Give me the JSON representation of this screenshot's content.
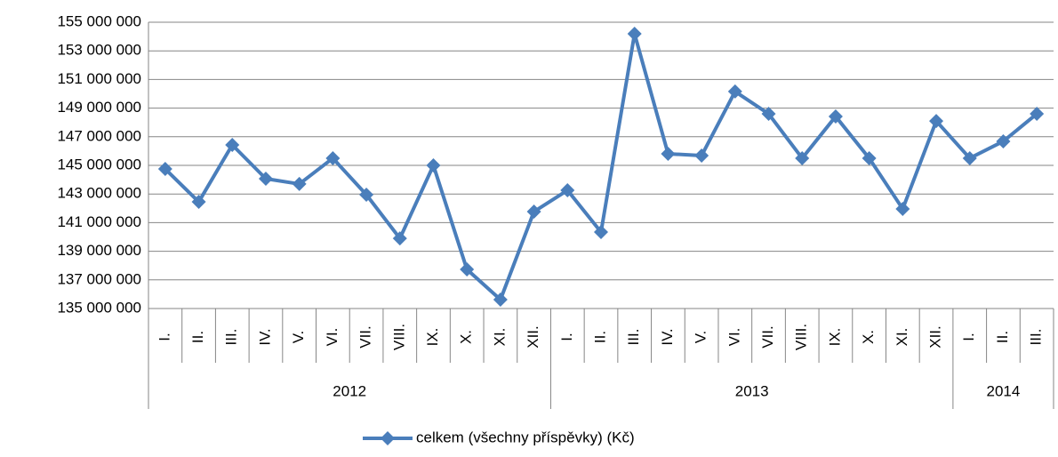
{
  "chart_data": {
    "type": "line",
    "groups": [
      {
        "label": "2012",
        "categories": [
          "I.",
          "II.",
          "III.",
          "IV.",
          "V.",
          "VI.",
          "VII.",
          "VIII.",
          "IX.",
          "X.",
          "XI.",
          "XII."
        ]
      },
      {
        "label": "2013",
        "categories": [
          "I.",
          "II.",
          "III.",
          "IV.",
          "V.",
          "VI.",
          "VII.",
          "VIII.",
          "IX.",
          "X.",
          "XI.",
          "XII."
        ]
      },
      {
        "label": "2014",
        "categories": [
          "I.",
          "II.",
          "III."
        ]
      }
    ],
    "series": [
      {
        "name": "celkem (všechny příspěvky) (Kč)",
        "color": "#4a7ebb",
        "values": [
          144750000,
          142450000,
          146430000,
          144070000,
          143700000,
          145500000,
          142950000,
          139900000,
          145000000,
          137730000,
          135620000,
          141770000,
          143260000,
          140340000,
          154190000,
          145810000,
          145680000,
          150160000,
          148600000,
          145500000,
          148420000,
          145500000,
          141960000,
          148100000,
          145500000,
          146680000,
          148600000
        ]
      }
    ],
    "ylim": [
      135000000,
      155000000
    ],
    "yticks": [
      {
        "value": 135000000,
        "label": "135 000 000"
      },
      {
        "value": 137000000,
        "label": "137 000 000"
      },
      {
        "value": 139000000,
        "label": "139 000 000"
      },
      {
        "value": 141000000,
        "label": "141 000 000"
      },
      {
        "value": 143000000,
        "label": "143 000 000"
      },
      {
        "value": 145000000,
        "label": "145 000 000"
      },
      {
        "value": 147000000,
        "label": "147 000 000"
      },
      {
        "value": 149000000,
        "label": "149 000 000"
      },
      {
        "value": 151000000,
        "label": "151 000 000"
      },
      {
        "value": 153000000,
        "label": "153 000 000"
      },
      {
        "value": 155000000,
        "label": "155 000 000"
      }
    ],
    "grid": true,
    "legend": "bottom"
  }
}
